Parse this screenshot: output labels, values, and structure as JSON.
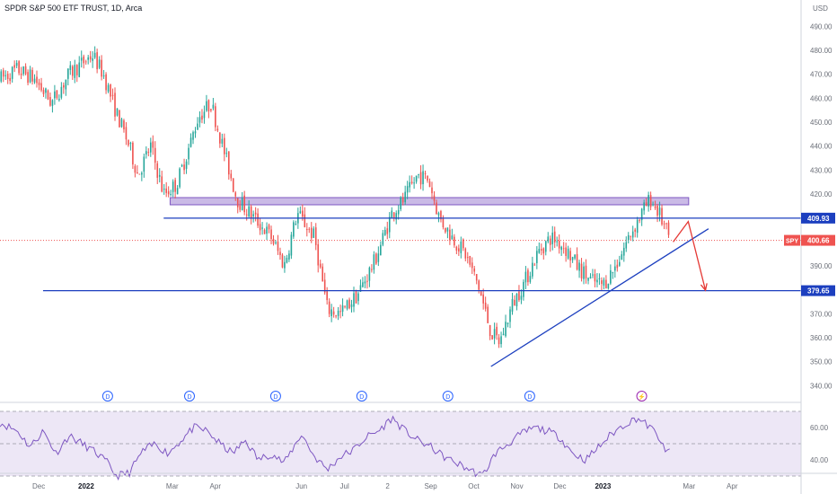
{
  "header": {
    "title": "SPDR S&P 500 ETF TRUST, 1D, Arca"
  },
  "chart_data": {
    "type": "candlestick",
    "currency": "USD",
    "ylim": [
      336,
      495
    ],
    "y_ticks": [
      340,
      350,
      360,
      370,
      380,
      390,
      400,
      410,
      420,
      430,
      440,
      450,
      460,
      470,
      480,
      490
    ],
    "x_labels": [
      "Dec",
      "2022",
      "Mar",
      "Apr",
      "Jun",
      "Jul",
      "2",
      "Sep",
      "Oct",
      "Nov",
      "Dec",
      "2023",
      "Mar",
      "Apr"
    ],
    "x_label_times": [
      -1.1,
      0,
      2,
      3,
      5,
      6,
      7,
      8,
      9,
      10,
      11,
      12,
      14,
      15
    ],
    "xlim": [
      -2.0,
      16.6
    ],
    "price_path": [
      [
        -2.0,
        468
      ],
      [
        -1.6,
        472
      ],
      [
        -1.2,
        468
      ],
      [
        -0.8,
        458
      ],
      [
        -0.4,
        470
      ],
      [
        0,
        476
      ],
      [
        0.15,
        478
      ],
      [
        0.4,
        470
      ],
      [
        0.7,
        454
      ],
      [
        1.0,
        440
      ],
      [
        1.2,
        428
      ],
      [
        1.5,
        440
      ],
      [
        1.8,
        420
      ],
      [
        2.1,
        424
      ],
      [
        2.4,
        440
      ],
      [
        2.6,
        452
      ],
      [
        2.9,
        458
      ],
      [
        3.2,
        438
      ],
      [
        3.5,
        418
      ],
      [
        3.9,
        410
      ],
      [
        4.3,
        402
      ],
      [
        4.6,
        390
      ],
      [
        4.9,
        412
      ],
      [
        5.3,
        402
      ],
      [
        5.6,
        372
      ],
      [
        5.9,
        370
      ],
      [
        6.3,
        378
      ],
      [
        6.7,
        392
      ],
      [
        7.1,
        412
      ],
      [
        7.4,
        418
      ],
      [
        7.7,
        428
      ],
      [
        7.95,
        426
      ],
      [
        8.2,
        410
      ],
      [
        8.5,
        402
      ],
      [
        8.8,
        395
      ],
      [
        9.1,
        382
      ],
      [
        9.4,
        362
      ],
      [
        9.6,
        358
      ],
      [
        9.9,
        374
      ],
      [
        10.2,
        384
      ],
      [
        10.5,
        396
      ],
      [
        10.8,
        402
      ],
      [
        11.1,
        398
      ],
      [
        11.4,
        390
      ],
      [
        11.7,
        384
      ],
      [
        12.0,
        382
      ],
      [
        12.3,
        390
      ],
      [
        12.6,
        402
      ],
      [
        12.9,
        412
      ],
      [
        13.1,
        418
      ],
      [
        13.3,
        412
      ],
      [
        13.55,
        401
      ]
    ],
    "indicator_path": [
      [
        -2.0,
        63
      ],
      [
        -1.6,
        58
      ],
      [
        -1.3,
        48
      ],
      [
        -1.0,
        58
      ],
      [
        -0.7,
        44
      ],
      [
        -0.4,
        55
      ],
      [
        -0.1,
        50
      ],
      [
        0.2,
        45
      ],
      [
        0.5,
        38
      ],
      [
        0.7,
        30
      ],
      [
        1.0,
        32
      ],
      [
        1.3,
        45
      ],
      [
        1.6,
        50
      ],
      [
        1.9,
        44
      ],
      [
        2.2,
        52
      ],
      [
        2.5,
        60
      ],
      [
        2.8,
        58
      ],
      [
        3.1,
        50
      ],
      [
        3.4,
        44
      ],
      [
        3.7,
        52
      ],
      [
        4.0,
        40
      ],
      [
        4.3,
        44
      ],
      [
        4.6,
        38
      ],
      [
        5.0,
        56
      ],
      [
        5.3,
        42
      ],
      [
        5.6,
        34
      ],
      [
        5.9,
        42
      ],
      [
        6.2,
        46
      ],
      [
        6.5,
        54
      ],
      [
        6.8,
        58
      ],
      [
        7.1,
        66
      ],
      [
        7.4,
        58
      ],
      [
        7.7,
        52
      ],
      [
        8.0,
        48
      ],
      [
        8.3,
        42
      ],
      [
        8.6,
        38
      ],
      [
        8.9,
        34
      ],
      [
        9.2,
        30
      ],
      [
        9.5,
        44
      ],
      [
        9.8,
        50
      ],
      [
        10.1,
        56
      ],
      [
        10.4,
        60
      ],
      [
        10.7,
        58
      ],
      [
        11.0,
        54
      ],
      [
        11.3,
        44
      ],
      [
        11.6,
        40
      ],
      [
        11.9,
        48
      ],
      [
        12.2,
        56
      ],
      [
        12.5,
        62
      ],
      [
        12.8,
        66
      ],
      [
        13.1,
        60
      ],
      [
        13.3,
        54
      ],
      [
        13.45,
        44
      ],
      [
        13.55,
        46
      ]
    ],
    "horizontal_levels": [
      {
        "price": 409.93,
        "label": "409.93",
        "x_start": 1.8
      },
      {
        "price": 379.65,
        "label": "379.65",
        "x_start": -1.0
      }
    ],
    "resistance_zone": {
      "y_low": 415.5,
      "y_high": 418.5,
      "x_start": 1.95,
      "x_end": 13.99
    },
    "trendline": {
      "from": [
        9.4,
        348
      ],
      "to": [
        14.45,
        405.5
      ]
    },
    "forecast_arrow": {
      "points": [
        [
          13.63,
          400
        ],
        [
          13.98,
          408.5
        ],
        [
          14.38,
          379.8
        ]
      ],
      "color": "#e53935"
    },
    "current_price": {
      "symbol": "SPY",
      "value": "400.66",
      "price": 400.66
    },
    "dividend_markers": {
      "label": "D",
      "times": [
        0.5,
        2.4,
        4.4,
        6.4,
        8.4,
        10.3
      ]
    },
    "split_marker": {
      "symbol": "⚡",
      "time": 12.9
    },
    "indicator": {
      "ylim": [
        30,
        70
      ],
      "ticks": [
        40,
        60
      ],
      "band_upper": 70,
      "band_lower": 30,
      "mid": 50
    },
    "colors": {
      "up": "#26a69a",
      "down": "#ef5350",
      "level_line": "#1c3fbf",
      "zone_fill": "#b39ddb",
      "zone_stroke": "#7e57c2",
      "price_tag": "#ef5350",
      "level_tag": "#1c3fbf",
      "indicator_line": "#7e57c2",
      "indicator_band": "#ede7f6",
      "marker": "#2962ff"
    }
  }
}
